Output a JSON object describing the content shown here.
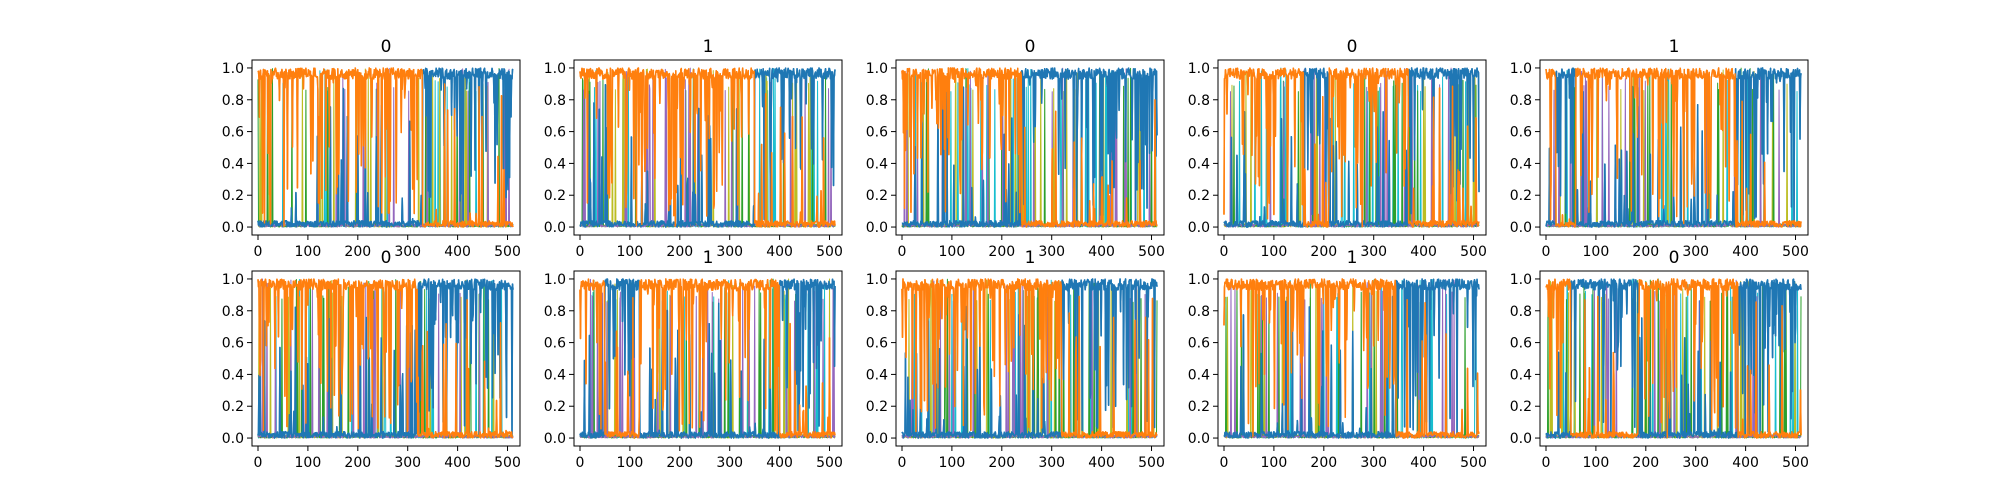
{
  "figure": {
    "background": "#ffffff"
  },
  "chart_data": {
    "type": "line",
    "layout": "2 rows x 5 columns of subplots",
    "xlim": [
      -12,
      525
    ],
    "ylim": [
      -0.05,
      1.05
    ],
    "xticks": [
      0,
      100,
      200,
      300,
      400,
      500
    ],
    "yticks": [
      0.0,
      0.2,
      0.4,
      0.6,
      0.8,
      1.0
    ],
    "xtick_labels": [
      "0",
      "100",
      "200",
      "300",
      "400",
      "500"
    ],
    "ytick_labels": [
      "0.0",
      "0.2",
      "0.4",
      "0.6",
      "0.8",
      "1.0"
    ],
    "grid": false,
    "legend": "none",
    "x_length": 512,
    "series_colors": {
      "class_0": "#1f77b4",
      "class_1": "#ff7f0e",
      "minor_a": "#17becf",
      "minor_b": "#bcbd22",
      "minor_c": "#2ca02c",
      "minor_d": "#9467bd"
    },
    "panels": [
      {
        "title": "0",
        "dominant": [
          {
            "class": 1,
            "from": 0,
            "to": 330
          },
          {
            "class": 0,
            "from": 330,
            "to": 512
          }
        ]
      },
      {
        "title": "1",
        "dominant": [
          {
            "class": 1,
            "from": 0,
            "to": 350
          },
          {
            "class": 0,
            "from": 350,
            "to": 512
          }
        ]
      },
      {
        "title": "0",
        "dominant": [
          {
            "class": 1,
            "from": 0,
            "to": 240
          },
          {
            "class": 0,
            "from": 240,
            "to": 512
          }
        ]
      },
      {
        "title": "0",
        "dominant": [
          {
            "class": 1,
            "from": 0,
            "to": 160
          },
          {
            "class": 0,
            "from": 160,
            "to": 210
          },
          {
            "class": 1,
            "from": 210,
            "to": 370
          },
          {
            "class": 0,
            "from": 370,
            "to": 512
          }
        ]
      },
      {
        "title": "1",
        "dominant": [
          {
            "class": 1,
            "from": 0,
            "to": 20
          },
          {
            "class": 0,
            "from": 20,
            "to": 60
          },
          {
            "class": 1,
            "from": 60,
            "to": 380
          },
          {
            "class": 0,
            "from": 380,
            "to": 512
          }
        ]
      },
      {
        "title": "0",
        "dominant": [
          {
            "class": 1,
            "from": 0,
            "to": 320
          },
          {
            "class": 0,
            "from": 320,
            "to": 512
          }
        ]
      },
      {
        "title": "1",
        "dominant": [
          {
            "class": 1,
            "from": 0,
            "to": 50
          },
          {
            "class": 0,
            "from": 50,
            "to": 120
          },
          {
            "class": 1,
            "from": 120,
            "to": 400
          },
          {
            "class": 0,
            "from": 400,
            "to": 512
          }
        ]
      },
      {
        "title": "1",
        "dominant": [
          {
            "class": 1,
            "from": 0,
            "to": 320
          },
          {
            "class": 0,
            "from": 320,
            "to": 512
          }
        ]
      },
      {
        "title": "1",
        "dominant": [
          {
            "class": 1,
            "from": 0,
            "to": 345
          },
          {
            "class": 0,
            "from": 345,
            "to": 512
          }
        ]
      },
      {
        "title": "0",
        "dominant": [
          {
            "class": 1,
            "from": 0,
            "to": 50
          },
          {
            "class": 0,
            "from": 50,
            "to": 185
          },
          {
            "class": 1,
            "from": 185,
            "to": 385
          },
          {
            "class": 0,
            "from": 385,
            "to": 512
          }
        ]
      }
    ]
  }
}
